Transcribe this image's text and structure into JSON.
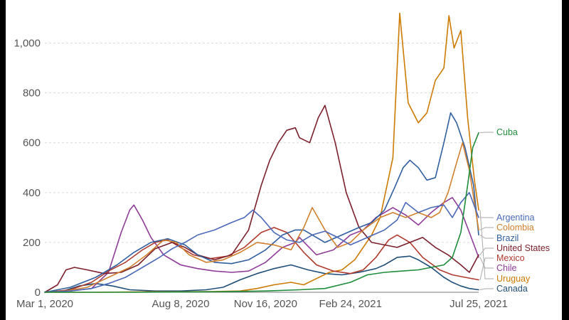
{
  "chart_data": {
    "type": "line",
    "title": "",
    "xlabel": "",
    "ylabel": "",
    "ylim": [
      0,
      1150
    ],
    "yticks": [
      0,
      200,
      400,
      600,
      800,
      1000
    ],
    "ytick_labels": [
      "0",
      "200",
      "400",
      "600",
      "800",
      "1,000"
    ],
    "x_start_day": 0,
    "x_end_day": 511,
    "xticks": [
      {
        "day": 0,
        "label": "Mar 1, 2020"
      },
      {
        "day": 160,
        "label": "Aug 8, 2020"
      },
      {
        "day": 260,
        "label": "Nov 16, 2020"
      },
      {
        "day": 360,
        "label": "Feb 24, 2021"
      },
      {
        "day": 511,
        "label": "Jul 25, 2021"
      }
    ],
    "series": [
      {
        "name": "Canada",
        "color": "#1f4e79",
        "points": [
          [
            0,
            0
          ],
          [
            20,
            3
          ],
          [
            40,
            25
          ],
          [
            60,
            35
          ],
          [
            80,
            25
          ],
          [
            100,
            10
          ],
          [
            130,
            5
          ],
          [
            160,
            5
          ],
          [
            190,
            10
          ],
          [
            210,
            20
          ],
          [
            230,
            50
          ],
          [
            250,
            75
          ],
          [
            270,
            95
          ],
          [
            290,
            110
          ],
          [
            310,
            90
          ],
          [
            330,
            75
          ],
          [
            350,
            70
          ],
          [
            370,
            80
          ],
          [
            390,
            95
          ],
          [
            400,
            110
          ],
          [
            415,
            140
          ],
          [
            430,
            145
          ],
          [
            440,
            130
          ],
          [
            455,
            100
          ],
          [
            470,
            60
          ],
          [
            480,
            40
          ],
          [
            490,
            25
          ],
          [
            500,
            15
          ],
          [
            511,
            10
          ]
        ]
      },
      {
        "name": "Uruguay",
        "color": "#cc7a00",
        "points": [
          [
            0,
            0
          ],
          [
            60,
            0
          ],
          [
            120,
            2
          ],
          [
            160,
            2
          ],
          [
            200,
            3
          ],
          [
            230,
            5
          ],
          [
            250,
            15
          ],
          [
            270,
            30
          ],
          [
            290,
            40
          ],
          [
            305,
            30
          ],
          [
            320,
            55
          ],
          [
            335,
            80
          ],
          [
            350,
            90
          ],
          [
            365,
            130
          ],
          [
            385,
            230
          ],
          [
            395,
            300
          ],
          [
            410,
            540
          ],
          [
            418,
            1120
          ],
          [
            428,
            760
          ],
          [
            440,
            680
          ],
          [
            450,
            720
          ],
          [
            460,
            850
          ],
          [
            470,
            900
          ],
          [
            476,
            1110
          ],
          [
            482,
            980
          ],
          [
            490,
            1050
          ],
          [
            498,
            700
          ],
          [
            506,
            450
          ],
          [
            511,
            330
          ]
        ]
      },
      {
        "name": "Chile",
        "color": "#8e3c97",
        "points": [
          [
            0,
            0
          ],
          [
            30,
            5
          ],
          [
            55,
            15
          ],
          [
            75,
            80
          ],
          [
            90,
            240
          ],
          [
            100,
            330
          ],
          [
            105,
            350
          ],
          [
            115,
            290
          ],
          [
            125,
            220
          ],
          [
            140,
            150
          ],
          [
            160,
            110
          ],
          [
            180,
            95
          ],
          [
            200,
            85
          ],
          [
            220,
            80
          ],
          [
            240,
            85
          ],
          [
            260,
            120
          ],
          [
            280,
            180
          ],
          [
            295,
            200
          ],
          [
            300,
            220
          ],
          [
            320,
            150
          ],
          [
            340,
            170
          ],
          [
            360,
            230
          ],
          [
            375,
            250
          ],
          [
            390,
            300
          ],
          [
            410,
            340
          ],
          [
            425,
            310
          ],
          [
            440,
            270
          ],
          [
            455,
            320
          ],
          [
            470,
            360
          ],
          [
            480,
            380
          ],
          [
            490,
            330
          ],
          [
            500,
            240
          ],
          [
            511,
            140
          ]
        ]
      },
      {
        "name": "Mexico",
        "color": "#b03a2e",
        "points": [
          [
            0,
            0
          ],
          [
            30,
            10
          ],
          [
            55,
            40
          ],
          [
            75,
            85
          ],
          [
            95,
            120
          ],
          [
            115,
            170
          ],
          [
            130,
            200
          ],
          [
            145,
            210
          ],
          [
            160,
            180
          ],
          [
            175,
            150
          ],
          [
            195,
            135
          ],
          [
            215,
            145
          ],
          [
            235,
            180
          ],
          [
            255,
            240
          ],
          [
            270,
            260
          ],
          [
            285,
            240
          ],
          [
            295,
            200
          ],
          [
            305,
            160
          ],
          [
            320,
            110
          ],
          [
            340,
            85
          ],
          [
            360,
            75
          ],
          [
            375,
            90
          ],
          [
            390,
            140
          ],
          [
            405,
            210
          ],
          [
            415,
            230
          ],
          [
            430,
            200
          ],
          [
            445,
            140
          ],
          [
            465,
            90
          ],
          [
            480,
            70
          ],
          [
            495,
            60
          ],
          [
            511,
            50
          ]
        ]
      },
      {
        "name": "United States",
        "color": "#7a1f2b",
        "points": [
          [
            0,
            0
          ],
          [
            15,
            30
          ],
          [
            25,
            90
          ],
          [
            35,
            100
          ],
          [
            50,
            90
          ],
          [
            70,
            75
          ],
          [
            90,
            80
          ],
          [
            110,
            110
          ],
          [
            130,
            175
          ],
          [
            150,
            200
          ],
          [
            165,
            180
          ],
          [
            180,
            150
          ],
          [
            200,
            130
          ],
          [
            220,
            150
          ],
          [
            240,
            250
          ],
          [
            255,
            430
          ],
          [
            265,
            530
          ],
          [
            275,
            600
          ],
          [
            285,
            650
          ],
          [
            295,
            660
          ],
          [
            300,
            620
          ],
          [
            312,
            600
          ],
          [
            322,
            700
          ],
          [
            330,
            750
          ],
          [
            342,
            600
          ],
          [
            355,
            400
          ],
          [
            370,
            260
          ],
          [
            385,
            200
          ],
          [
            400,
            190
          ],
          [
            415,
            180
          ],
          [
            430,
            200
          ],
          [
            445,
            220
          ],
          [
            460,
            180
          ],
          [
            475,
            150
          ],
          [
            490,
            110
          ],
          [
            500,
            80
          ],
          [
            511,
            150
          ]
        ]
      },
      {
        "name": "Brazil",
        "color": "#2f5f9e",
        "points": [
          [
            0,
            0
          ],
          [
            30,
            20
          ],
          [
            60,
            60
          ],
          [
            85,
            110
          ],
          [
            105,
            160
          ],
          [
            125,
            200
          ],
          [
            145,
            215
          ],
          [
            165,
            190
          ],
          [
            180,
            150
          ],
          [
            200,
            120
          ],
          [
            220,
            115
          ],
          [
            240,
            130
          ],
          [
            260,
            170
          ],
          [
            280,
            230
          ],
          [
            295,
            250
          ],
          [
            305,
            250
          ],
          [
            315,
            230
          ],
          [
            330,
            200
          ],
          [
            350,
            230
          ],
          [
            370,
            260
          ],
          [
            385,
            280
          ],
          [
            400,
            330
          ],
          [
            412,
            420
          ],
          [
            422,
            500
          ],
          [
            430,
            530
          ],
          [
            440,
            500
          ],
          [
            450,
            450
          ],
          [
            460,
            460
          ],
          [
            470,
            600
          ],
          [
            478,
            720
          ],
          [
            485,
            680
          ],
          [
            495,
            580
          ],
          [
            505,
            430
          ],
          [
            511,
            230
          ]
        ]
      },
      {
        "name": "Colombia",
        "color": "#d0802d",
        "points": [
          [
            0,
            0
          ],
          [
            25,
            5
          ],
          [
            50,
            20
          ],
          [
            75,
            60
          ],
          [
            100,
            100
          ],
          [
            120,
            150
          ],
          [
            140,
            210
          ],
          [
            155,
            200
          ],
          [
            170,
            150
          ],
          [
            190,
            120
          ],
          [
            210,
            130
          ],
          [
            230,
            160
          ],
          [
            250,
            200
          ],
          [
            270,
            190
          ],
          [
            290,
            170
          ],
          [
            305,
            260
          ],
          [
            315,
            340
          ],
          [
            330,
            250
          ],
          [
            345,
            180
          ],
          [
            360,
            200
          ],
          [
            375,
            250
          ],
          [
            395,
            300
          ],
          [
            410,
            320
          ],
          [
            425,
            300
          ],
          [
            440,
            320
          ],
          [
            455,
            300
          ],
          [
            465,
            320
          ],
          [
            475,
            400
          ],
          [
            485,
            520
          ],
          [
            492,
            600
          ],
          [
            500,
            490
          ],
          [
            511,
            250
          ]
        ]
      },
      {
        "name": "Argentina",
        "color": "#4a69b8",
        "points": [
          [
            0,
            0
          ],
          [
            30,
            5
          ],
          [
            55,
            15
          ],
          [
            75,
            35
          ],
          [
            95,
            60
          ],
          [
            115,
            100
          ],
          [
            135,
            140
          ],
          [
            150,
            175
          ],
          [
            165,
            200
          ],
          [
            180,
            230
          ],
          [
            200,
            250
          ],
          [
            220,
            280
          ],
          [
            235,
            300
          ],
          [
            245,
            330
          ],
          [
            255,
            300
          ],
          [
            270,
            240
          ],
          [
            285,
            210
          ],
          [
            300,
            200
          ],
          [
            315,
            230
          ],
          [
            330,
            245
          ],
          [
            345,
            220
          ],
          [
            360,
            190
          ],
          [
            380,
            220
          ],
          [
            400,
            250
          ],
          [
            415,
            290
          ],
          [
            425,
            360
          ],
          [
            440,
            320
          ],
          [
            455,
            340
          ],
          [
            470,
            350
          ],
          [
            480,
            300
          ],
          [
            490,
            360
          ],
          [
            500,
            400
          ],
          [
            511,
            300
          ]
        ]
      },
      {
        "name": "Cuba",
        "color": "#1e8c3a",
        "points": [
          [
            0,
            0
          ],
          [
            100,
            0
          ],
          [
            200,
            2
          ],
          [
            260,
            5
          ],
          [
            300,
            10
          ],
          [
            330,
            15
          ],
          [
            360,
            40
          ],
          [
            380,
            70
          ],
          [
            400,
            80
          ],
          [
            420,
            85
          ],
          [
            440,
            90
          ],
          [
            455,
            100
          ],
          [
            470,
            110
          ],
          [
            480,
            140
          ],
          [
            490,
            240
          ],
          [
            498,
            430
          ],
          [
            504,
            580
          ],
          [
            511,
            640
          ]
        ]
      }
    ]
  }
}
